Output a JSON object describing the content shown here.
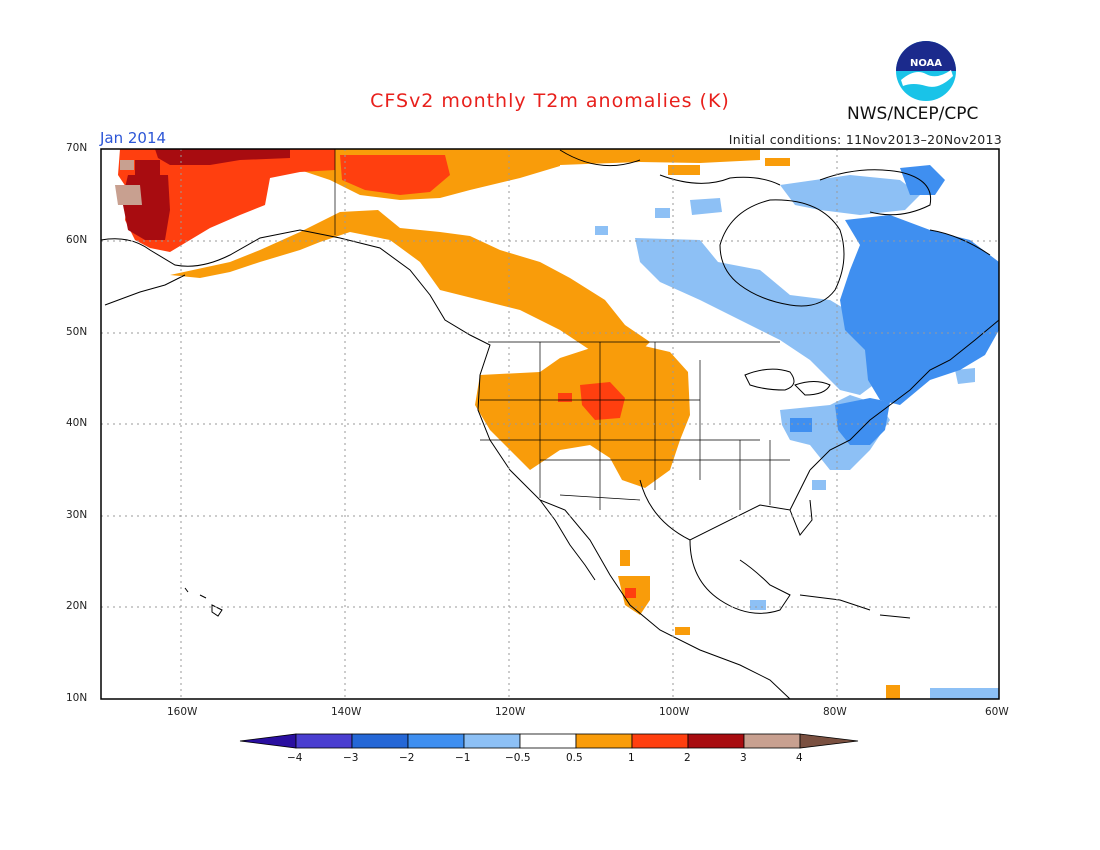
{
  "header": {
    "title": "CFSv2 monthly T2m anomalies (K)",
    "period": "Jan 2014",
    "initial_conditions": "Initial conditions: 11Nov2013–20Nov2013",
    "agency": "NWS/NCEP/CPC",
    "logo_text": "NOAA",
    "logo_icon": "noaa-logo-icon"
  },
  "map": {
    "projection": "lat-lon",
    "lon_range": [
      -172,
      -60
    ],
    "lat_range": [
      10,
      70
    ],
    "lat_ticks": [
      "70N",
      "60N",
      "50N",
      "40N",
      "30N",
      "20N",
      "10N"
    ],
    "lon_ticks": [
      "160W",
      "140W",
      "120W",
      "100W",
      "80W",
      "60W"
    ],
    "gridlines": "dotted"
  },
  "colorbar": {
    "labels": [
      "−4",
      "−3",
      "−2",
      "−1",
      "−0.5",
      "0.5",
      "1",
      "2",
      "3",
      "4"
    ],
    "colors": [
      "#2a0fa0",
      "#4a3ed0",
      "#2567d6",
      "#3f8ff0",
      "#8dc0f5",
      "#ffffff",
      "#f99c0a",
      "#ff3f0f",
      "#a80c10",
      "#c8a090",
      "#7a5040"
    ]
  },
  "anomaly_colors": {
    "pos_half": "#f99c0a",
    "pos_one": "#ff3f0f",
    "pos_two": "#a80c10",
    "pos_three": "#c8a090",
    "neg_half": "#8dc0f5",
    "neg_one": "#3f8ff0"
  }
}
